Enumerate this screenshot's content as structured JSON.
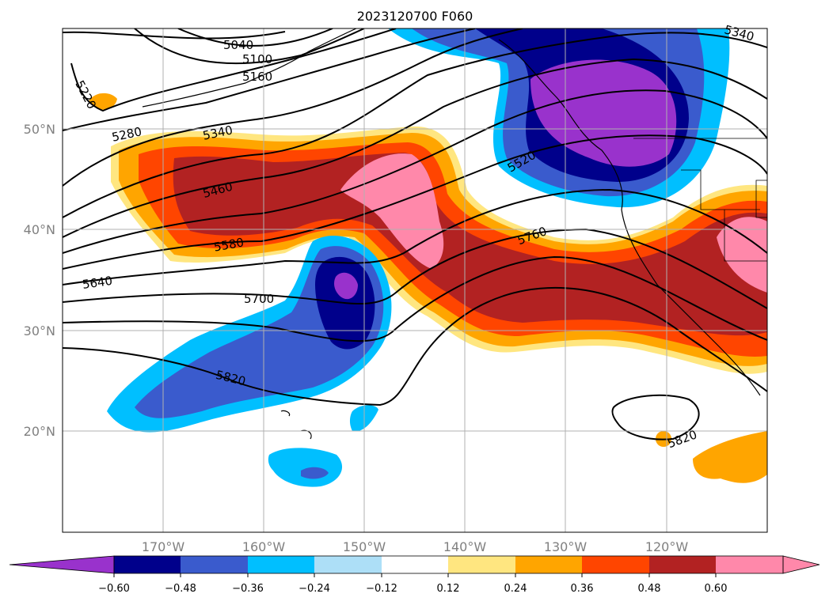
{
  "title": "2023120700 F060",
  "lat_labels": [
    "50°N",
    "40°N",
    "30°N",
    "20°N"
  ],
  "lon_labels": [
    "170°W",
    "160°W",
    "150°W",
    "140°W",
    "130°W",
    "120°W"
  ],
  "contour_labels": [
    "5040",
    "5100",
    "5160",
    "5220",
    "5280",
    "5340",
    "5460",
    "5580",
    "5640",
    "5700",
    "5820",
    "5520",
    "5760",
    "5820",
    "5340"
  ],
  "colorbar": {
    "ticks": [
      "−0.60",
      "−0.48",
      "−0.36",
      "−0.24",
      "−0.12",
      "0.12",
      "0.24",
      "0.36",
      "0.48",
      "0.60"
    ],
    "colors": [
      "#9932CC",
      "#00008B",
      "#3A5BCD",
      "#00BFFF",
      "#ADDFF7",
      "#FFFFFF",
      "#FFE680",
      "#FFA500",
      "#FF4500",
      "#B22222",
      "#FF88AA",
      "#FF88AA"
    ]
  }
}
